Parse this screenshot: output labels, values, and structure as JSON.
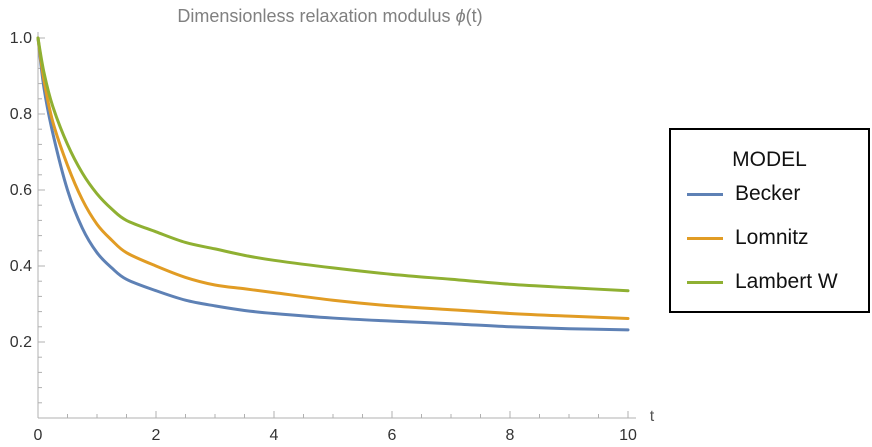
{
  "chart_data": {
    "type": "line",
    "title": "Dimensionless relaxation modulus ϕ(t)",
    "title_main": "Dimensionless relaxation modulus ",
    "title_symbol": "ϕ",
    "title_arg": "(t)",
    "xlabel": "t",
    "ylabel": "",
    "xlim": [
      0,
      10
    ],
    "ylim": [
      0.0,
      1.0
    ],
    "x_ticks": [
      0,
      2,
      4,
      6,
      8,
      10
    ],
    "x_tick_labels": [
      "0",
      "2",
      "4",
      "6",
      "8",
      "10"
    ],
    "y_ticks": [
      0.2,
      0.4,
      0.6,
      0.8,
      1.0
    ],
    "y_tick_labels": [
      "0.2",
      "0.4",
      "0.6",
      "0.8",
      "1.0"
    ],
    "legend_title": "MODEL",
    "legend_position": "right",
    "series": [
      {
        "name": "Becker",
        "color": "#5E81B5",
        "x": [
          0,
          0.1,
          0.25,
          0.5,
          0.75,
          1.0,
          1.25,
          1.5,
          2.0,
          2.5,
          3.0,
          3.5,
          4.0,
          5.0,
          6.0,
          7.0,
          8.0,
          9.0,
          10.0
        ],
        "y": [
          1.0,
          0.87,
          0.75,
          0.6,
          0.5,
          0.435,
          0.395,
          0.365,
          0.335,
          0.31,
          0.295,
          0.283,
          0.275,
          0.263,
          0.255,
          0.248,
          0.24,
          0.235,
          0.232
        ]
      },
      {
        "name": "Lomnitz",
        "color": "#E19C24",
        "x": [
          0,
          0.1,
          0.25,
          0.5,
          0.75,
          1.0,
          1.25,
          1.5,
          2.0,
          2.5,
          3.0,
          3.5,
          4.0,
          5.0,
          6.0,
          7.0,
          8.0,
          9.0,
          10.0
        ],
        "y": [
          1.0,
          0.89,
          0.78,
          0.665,
          0.575,
          0.51,
          0.468,
          0.435,
          0.4,
          0.37,
          0.35,
          0.34,
          0.33,
          0.31,
          0.295,
          0.285,
          0.275,
          0.268,
          0.262
        ]
      },
      {
        "name": "Lambert W",
        "color": "#8FB032",
        "x": [
          0,
          0.1,
          0.25,
          0.5,
          0.75,
          1.0,
          1.25,
          1.5,
          2.0,
          2.5,
          3.0,
          3.5,
          4.0,
          5.0,
          6.0,
          7.0,
          8.0,
          9.0,
          10.0
        ],
        "y": [
          1.0,
          0.91,
          0.82,
          0.72,
          0.645,
          0.59,
          0.55,
          0.52,
          0.49,
          0.462,
          0.445,
          0.428,
          0.415,
          0.395,
          0.378,
          0.365,
          0.352,
          0.343,
          0.335
        ]
      }
    ]
  }
}
